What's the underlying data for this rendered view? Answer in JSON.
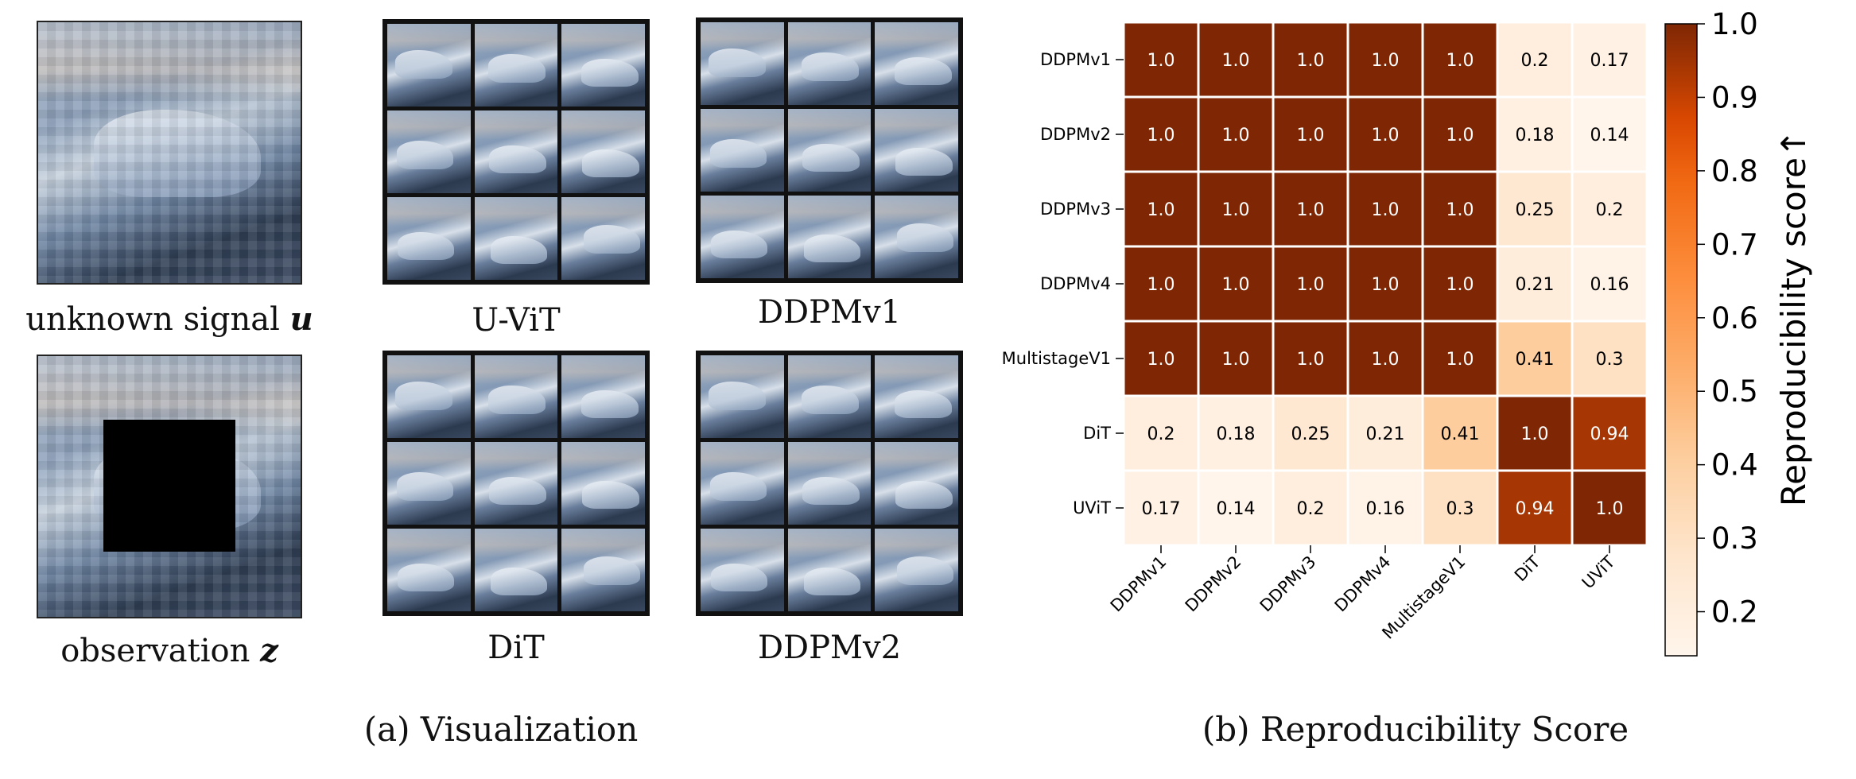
{
  "left": {
    "unknown_caption": "unknown signal",
    "unknown_symbol": "u",
    "observation_caption": "observation",
    "observation_symbol": "z",
    "panels": [
      "U-ViT",
      "DDPMv1",
      "DiT",
      "DDPMv2"
    ],
    "subfig_caption": "(a) Visualization"
  },
  "right": {
    "subfig_caption": "(b) Reproducibility Score"
  },
  "chart_data": {
    "type": "heatmap",
    "rows": [
      "DDPMv1",
      "DDPMv2",
      "DDPMv3",
      "DDPMv4",
      "MultistageV1",
      "DiT",
      "UViT"
    ],
    "cols": [
      "DDPMv1",
      "DDPMv2",
      "DDPMv3",
      "DDPMv4",
      "MultistageV1",
      "DiT",
      "UViT"
    ],
    "values": [
      [
        1.0,
        1.0,
        1.0,
        1.0,
        1.0,
        0.2,
        0.17
      ],
      [
        1.0,
        1.0,
        1.0,
        1.0,
        1.0,
        0.18,
        0.14
      ],
      [
        1.0,
        1.0,
        1.0,
        1.0,
        1.0,
        0.25,
        0.2
      ],
      [
        1.0,
        1.0,
        1.0,
        1.0,
        1.0,
        0.21,
        0.16
      ],
      [
        1.0,
        1.0,
        1.0,
        1.0,
        1.0,
        0.41,
        0.3
      ],
      [
        0.2,
        0.18,
        0.25,
        0.21,
        0.41,
        1.0,
        0.94
      ],
      [
        0.17,
        0.14,
        0.2,
        0.16,
        0.3,
        0.94,
        1.0
      ]
    ],
    "value_labels": [
      [
        "1.0",
        "1.0",
        "1.0",
        "1.0",
        "1.0",
        "0.2",
        "0.17"
      ],
      [
        "1.0",
        "1.0",
        "1.0",
        "1.0",
        "1.0",
        "0.18",
        "0.14"
      ],
      [
        "1.0",
        "1.0",
        "1.0",
        "1.0",
        "1.0",
        "0.25",
        "0.2"
      ],
      [
        "1.0",
        "1.0",
        "1.0",
        "1.0",
        "1.0",
        "0.21",
        "0.16"
      ],
      [
        "1.0",
        "1.0",
        "1.0",
        "1.0",
        "1.0",
        "0.41",
        "0.3"
      ],
      [
        "0.2",
        "0.18",
        "0.25",
        "0.21",
        "0.41",
        "1.0",
        "0.94"
      ],
      [
        "0.17",
        "0.14",
        "0.2",
        "0.16",
        "0.3",
        "0.94",
        "1.0"
      ]
    ],
    "colorbar": {
      "label": "Reproducibility score↑",
      "vmin": 0.14,
      "vmax": 1.0,
      "ticks": [
        "0.2",
        "0.3",
        "0.4",
        "0.5",
        "0.6",
        "0.7",
        "0.8",
        "0.9",
        "1.0"
      ],
      "colormap": "Oranges"
    },
    "annotation_color_light": "#ffffff",
    "annotation_color_dark": "#000000"
  }
}
